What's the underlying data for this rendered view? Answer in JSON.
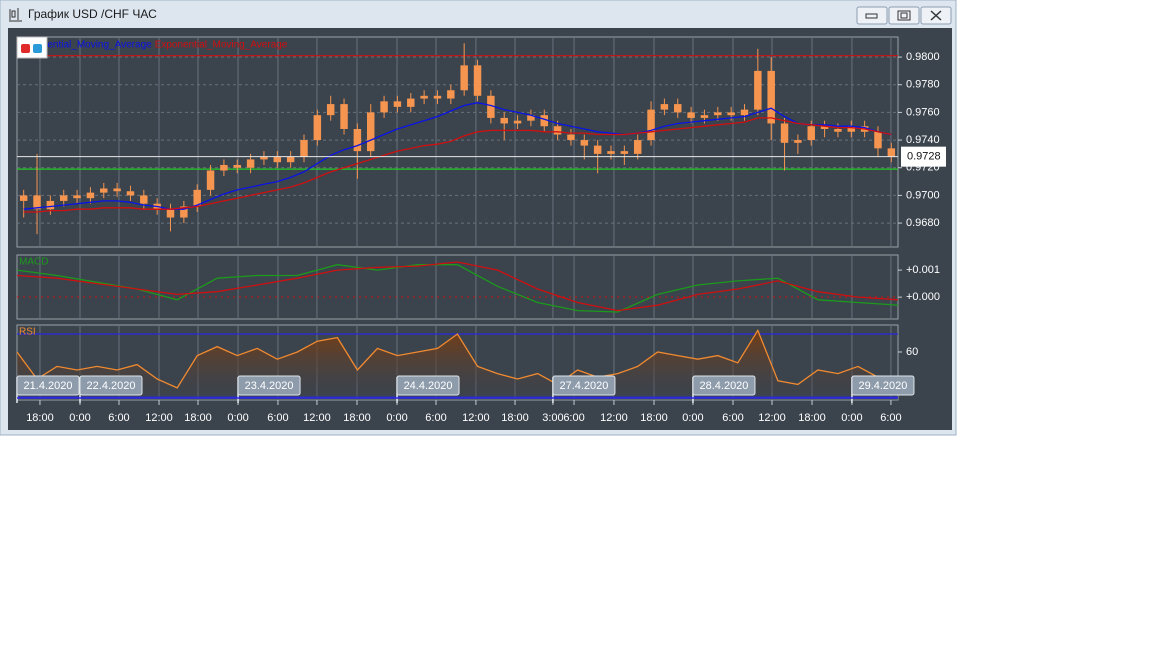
{
  "window": {
    "title": "График USD /CHF  ЧАС"
  },
  "chart_data": [
    {
      "type": "candlestick",
      "candle_color": "#f5954f",
      "open": [
        0.9696,
        0.97,
        0.969,
        0.9696,
        0.97,
        0.9698,
        0.9702,
        0.9705,
        0.9703,
        0.97,
        0.9694,
        0.969,
        0.9684,
        0.9692,
        0.9704,
        0.9718,
        0.9722,
        0.972,
        0.9726,
        0.9728,
        0.9724,
        0.9728,
        0.974,
        0.9758,
        0.9766,
        0.9748,
        0.9732,
        0.976,
        0.9768,
        0.9764,
        0.977,
        0.9772,
        0.977,
        0.9776,
        0.9794,
        0.9772,
        0.9756,
        0.9752,
        0.9754,
        0.9758,
        0.975,
        0.9744,
        0.974,
        0.9736,
        0.973,
        0.9732,
        0.973,
        0.974,
        0.9762,
        0.9766,
        0.976,
        0.9756,
        0.9758,
        0.976,
        0.9758,
        0.9762,
        0.979,
        0.9752,
        0.9738,
        0.974,
        0.975,
        0.9748,
        0.9746,
        0.975,
        0.9746,
        0.9734
      ],
      "high": [
        0.9704,
        0.973,
        0.97,
        0.9704,
        0.9704,
        0.9706,
        0.9709,
        0.9709,
        0.9707,
        0.9704,
        0.9698,
        0.9694,
        0.9696,
        0.9708,
        0.9722,
        0.9726,
        0.9726,
        0.973,
        0.9732,
        0.9732,
        0.9732,
        0.9744,
        0.9762,
        0.9772,
        0.977,
        0.9752,
        0.9766,
        0.9772,
        0.9772,
        0.9774,
        0.9776,
        0.9776,
        0.978,
        0.981,
        0.9798,
        0.9776,
        0.976,
        0.9758,
        0.9762,
        0.9762,
        0.9754,
        0.9748,
        0.9744,
        0.974,
        0.9736,
        0.9736,
        0.9744,
        0.9768,
        0.977,
        0.977,
        0.9764,
        0.9762,
        0.9764,
        0.9764,
        0.9766,
        0.9806,
        0.98,
        0.9756,
        0.9744,
        0.9754,
        0.9754,
        0.9752,
        0.9754,
        0.9754,
        0.975,
        0.9738
      ],
      "low": [
        0.9684,
        0.9672,
        0.9686,
        0.9692,
        0.9694,
        0.9694,
        0.9698,
        0.9699,
        0.9696,
        0.969,
        0.9686,
        0.9674,
        0.968,
        0.9688,
        0.97,
        0.9714,
        0.9716,
        0.9716,
        0.9722,
        0.972,
        0.972,
        0.9724,
        0.9736,
        0.9754,
        0.9744,
        0.9712,
        0.9728,
        0.9756,
        0.976,
        0.976,
        0.9766,
        0.9766,
        0.9766,
        0.9772,
        0.9768,
        0.9752,
        0.974,
        0.9748,
        0.975,
        0.9746,
        0.974,
        0.9736,
        0.9726,
        0.9716,
        0.9726,
        0.9722,
        0.9726,
        0.9736,
        0.9758,
        0.9756,
        0.9752,
        0.9752,
        0.9754,
        0.9754,
        0.9754,
        0.9758,
        0.974,
        0.9718,
        0.973,
        0.9736,
        0.9742,
        0.9742,
        0.9742,
        0.9742,
        0.9728,
        0.9724
      ],
      "close": [
        0.97,
        0.969,
        0.9696,
        0.97,
        0.9698,
        0.9702,
        0.9705,
        0.9703,
        0.97,
        0.9694,
        0.969,
        0.9684,
        0.9692,
        0.9704,
        0.9718,
        0.9722,
        0.972,
        0.9726,
        0.9728,
        0.9724,
        0.9728,
        0.974,
        0.9758,
        0.9766,
        0.9748,
        0.9732,
        0.976,
        0.9768,
        0.9764,
        0.977,
        0.9772,
        0.977,
        0.9776,
        0.9794,
        0.9772,
        0.9756,
        0.9752,
        0.9754,
        0.9758,
        0.975,
        0.9744,
        0.974,
        0.9736,
        0.973,
        0.9732,
        0.973,
        0.974,
        0.9762,
        0.9766,
        0.976,
        0.9756,
        0.9758,
        0.976,
        0.9758,
        0.9762,
        0.979,
        0.9752,
        0.9738,
        0.974,
        0.975,
        0.9748,
        0.9746,
        0.975,
        0.9746,
        0.9734,
        0.9728
      ],
      "series": [
        {
          "name": "Exponential_Moving_Average",
          "color": "#0a14e6",
          "values": [
            0.969,
            0.9691,
            0.9692,
            0.9693,
            0.9694,
            0.9695,
            0.9696,
            0.9696,
            0.9695,
            0.9693,
            0.9692,
            0.969,
            0.969,
            0.9693,
            0.9697,
            0.9701,
            0.9704,
            0.9706,
            0.9708,
            0.971,
            0.9713,
            0.9717,
            0.9723,
            0.9729,
            0.9733,
            0.9736,
            0.974,
            0.9744,
            0.9748,
            0.9751,
            0.9754,
            0.9757,
            0.9761,
            0.9765,
            0.9767,
            0.9765,
            0.9762,
            0.976,
            0.9758,
            0.9755,
            0.9752,
            0.975,
            0.9748,
            0.9746,
            0.9745,
            0.9744,
            0.9745,
            0.9747,
            0.975,
            0.9752,
            0.9753,
            0.9754,
            0.9755,
            0.9756,
            0.9757,
            0.976,
            0.9763,
            0.9757,
            0.9752,
            0.9751,
            0.9751,
            0.975,
            0.975,
            0.9749,
            0.9746,
            0.9744
          ]
        },
        {
          "name": "Exponential_Moving_Average",
          "color": "#d01010",
          "values": [
            0.9688,
            0.9688,
            0.9689,
            0.9689,
            0.969,
            0.969,
            0.9691,
            0.9691,
            0.9691,
            0.969,
            0.969,
            0.969,
            0.9691,
            0.9692,
            0.9694,
            0.9696,
            0.9698,
            0.97,
            0.9702,
            0.9704,
            0.9706,
            0.9709,
            0.9713,
            0.9717,
            0.972,
            0.9723,
            0.9726,
            0.9729,
            0.9732,
            0.9734,
            0.9736,
            0.9737,
            0.9739,
            0.9743,
            0.9746,
            0.9747,
            0.9747,
            0.9747,
            0.9747,
            0.9746,
            0.9746,
            0.9745,
            0.9745,
            0.9744,
            0.9744,
            0.9744,
            0.9745,
            0.9746,
            0.9747,
            0.9748,
            0.9749,
            0.975,
            0.9751,
            0.9752,
            0.9753,
            0.9756,
            0.9756,
            0.9754,
            0.9752,
            0.9751,
            0.975,
            0.9749,
            0.9749,
            0.9748,
            0.9746,
            0.9744
          ]
        }
      ],
      "levels": [
        {
          "value": 0.9801,
          "color": "#d01010"
        },
        {
          "value": 0.9719,
          "color": "#22cc22"
        }
      ],
      "last_price": 0.9728,
      "ylim": [
        0.96627,
        0.98145
      ],
      "yticks": [
        {
          "value": 0.968,
          "label": "0.9680"
        },
        {
          "value": 0.97,
          "label": "0.9700"
        },
        {
          "value": 0.972,
          "label": "0.9720"
        },
        {
          "value": 0.974,
          "label": "0.9740"
        },
        {
          "value": 0.976,
          "label": "0.9760"
        },
        {
          "value": 0.978,
          "label": "0.9780"
        },
        {
          "value": 0.98,
          "label": "0.9800"
        }
      ],
      "xlim": [
        0,
        66
      ],
      "xticks": [
        {
          "value": 1.72,
          "label": "18:00"
        },
        {
          "value": 4.72,
          "label": "0:00"
        },
        {
          "value": 7.64,
          "label": "6:00"
        },
        {
          "value": 10.64,
          "label": "12:00"
        },
        {
          "value": 13.56,
          "label": "18:00"
        },
        {
          "value": 16.56,
          "label": "0:00"
        },
        {
          "value": 19.55,
          "label": "6:00"
        },
        {
          "value": 22.47,
          "label": "12:00"
        },
        {
          "value": 25.47,
          "label": "18:00"
        },
        {
          "value": 28.47,
          "label": "0:00"
        },
        {
          "value": 31.39,
          "label": "6:00"
        },
        {
          "value": 34.38,
          "label": "12:00"
        },
        {
          "value": 37.31,
          "label": "18:00"
        },
        {
          "value": 40.15,
          "label": "3:00"
        },
        {
          "value": 41.73,
          "label": "6:00"
        },
        {
          "value": 44.72,
          "label": "12:00"
        },
        {
          "value": 47.72,
          "label": "18:00"
        },
        {
          "value": 50.64,
          "label": "0:00"
        },
        {
          "value": 53.64,
          "label": "6:00"
        },
        {
          "value": 56.56,
          "label": "12:00"
        },
        {
          "value": 59.56,
          "label": "18:00"
        },
        {
          "value": 62.55,
          "label": "0:00"
        },
        {
          "value": 65.47,
          "label": "6:00"
        }
      ],
      "date_markers": [
        {
          "value": 0,
          "label": "21.4.2020"
        },
        {
          "value": 4.72,
          "label": "22.4.2020"
        },
        {
          "value": 16.56,
          "label": "23.4.2020"
        },
        {
          "value": 28.47,
          "label": "24.4.2020"
        },
        {
          "value": 40.15,
          "label": "27.4.2020"
        },
        {
          "value": 50.64,
          "label": "28.4.2020"
        },
        {
          "value": 62.55,
          "label": "29.4.2020"
        }
      ]
    },
    {
      "type": "line",
      "title": "MACD",
      "series": [
        {
          "color": "#1c9a1c",
          "values": [
            0.001,
            0.0008,
            0.00055,
            0.0003,
            -0.0001,
            0.0007,
            0.0008,
            0.0008,
            0.0012,
            0.001,
            0.0012,
            0.0012,
            0.0004,
            -0.0002,
            -0.0005,
            -0.00055,
            0.0001,
            0.00045,
            0.0006,
            0.0007,
            -0.0001,
            -0.0002,
            -0.0003
          ]
        },
        {
          "color": "#d01010",
          "values": [
            0.0008,
            0.0007,
            0.0005,
            0.0003,
            0.0001,
            0.0002,
            0.00045,
            0.0007,
            0.001,
            0.0011,
            0.00115,
            0.0013,
            0.001,
            0.0003,
            -0.0002,
            -0.0005,
            -0.0003,
            0.0001,
            0.0003,
            0.0006,
            0.0002,
            0,
            -0.0001
          ]
        }
      ],
      "ylim": [
        -0.00081,
        0.00156
      ],
      "yticks": [
        {
          "value": 0,
          "label": "+0.000"
        },
        {
          "value": 0.001,
          "label": "+0.001"
        }
      ]
    },
    {
      "type": "area",
      "title": "RSI",
      "series": [
        {
          "color": "#f08a30",
          "values": [
            60,
            45,
            52,
            50,
            52,
            50,
            53,
            45,
            40,
            58,
            63,
            58,
            62,
            56,
            60,
            66,
            68,
            50,
            62,
            58,
            60,
            62,
            70,
            52,
            48,
            45,
            48,
            42,
            50,
            46,
            48,
            52,
            60,
            58,
            56,
            58,
            54,
            72,
            44,
            42,
            50,
            48,
            52,
            46,
            45
          ]
        }
      ],
      "levels": [
        {
          "value": 70,
          "color": "#2a2ae0"
        },
        {
          "value": 35,
          "color": "#2a2ae0"
        }
      ],
      "ylim": [
        33.3,
        75
      ],
      "yticks": [
        60
      ]
    }
  ]
}
